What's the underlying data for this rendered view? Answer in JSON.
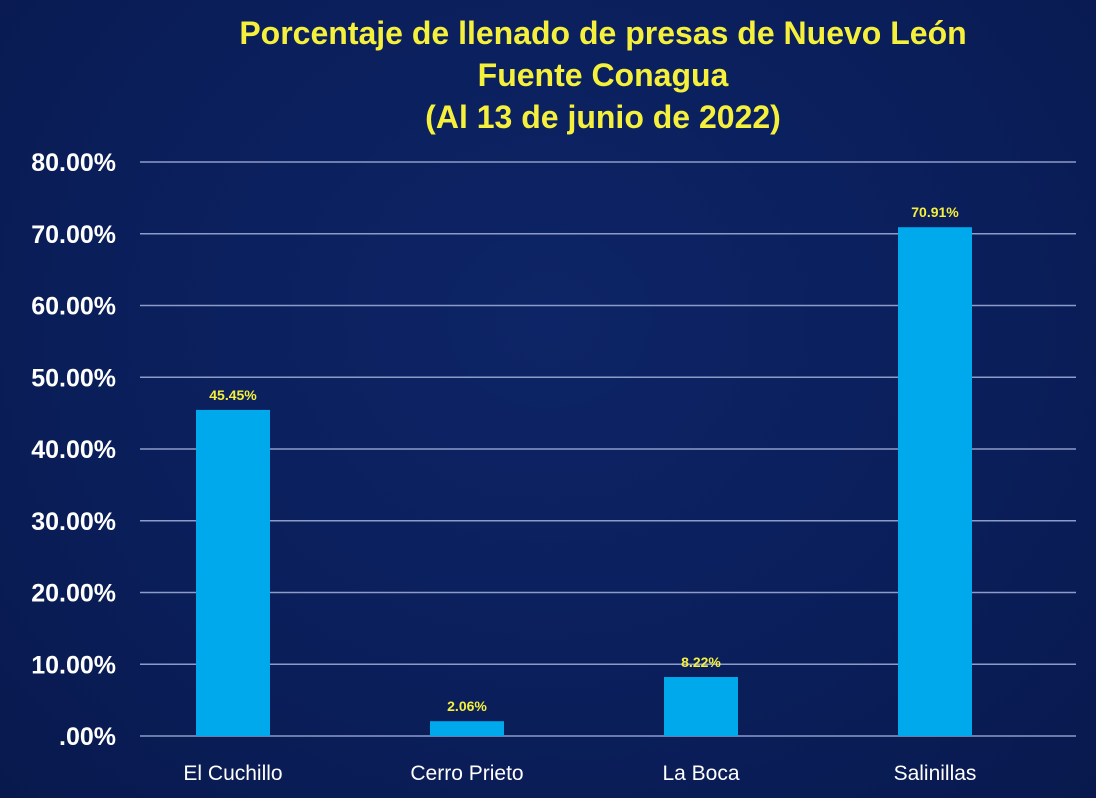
{
  "chart_data": {
    "type": "bar",
    "title_lines": [
      "Porcentaje de llenado  de presas de Nuevo León",
      "Fuente Conagua",
      "(Al 13 de junio de 2022)"
    ],
    "categories": [
      "El Cuchillo",
      "Cerro Prieto",
      "La Boca",
      "Salinillas"
    ],
    "values": [
      45.45,
      2.06,
      8.22,
      70.91
    ],
    "data_labels": [
      "45.45%",
      "2.06%",
      "8.22%",
      "70.91%"
    ],
    "y_ticks": [
      0,
      10,
      20,
      30,
      40,
      50,
      60,
      70,
      80
    ],
    "y_tick_labels": [
      ".00%",
      "10.00%",
      "20.00%",
      "30.00%",
      "40.00%",
      "50.00%",
      "60.00%",
      "70.00%",
      "80.00%"
    ],
    "ylim": [
      0,
      80
    ],
    "xlabel": "",
    "ylabel": "",
    "grid": true,
    "legend": "none",
    "colors": {
      "background": "#0a1e5a",
      "bar": "#00a8ec",
      "title": "#f5f03c",
      "data_label": "#f5f03c",
      "tick_label": "#ffffff",
      "gridline": "#8c9cc8"
    }
  }
}
